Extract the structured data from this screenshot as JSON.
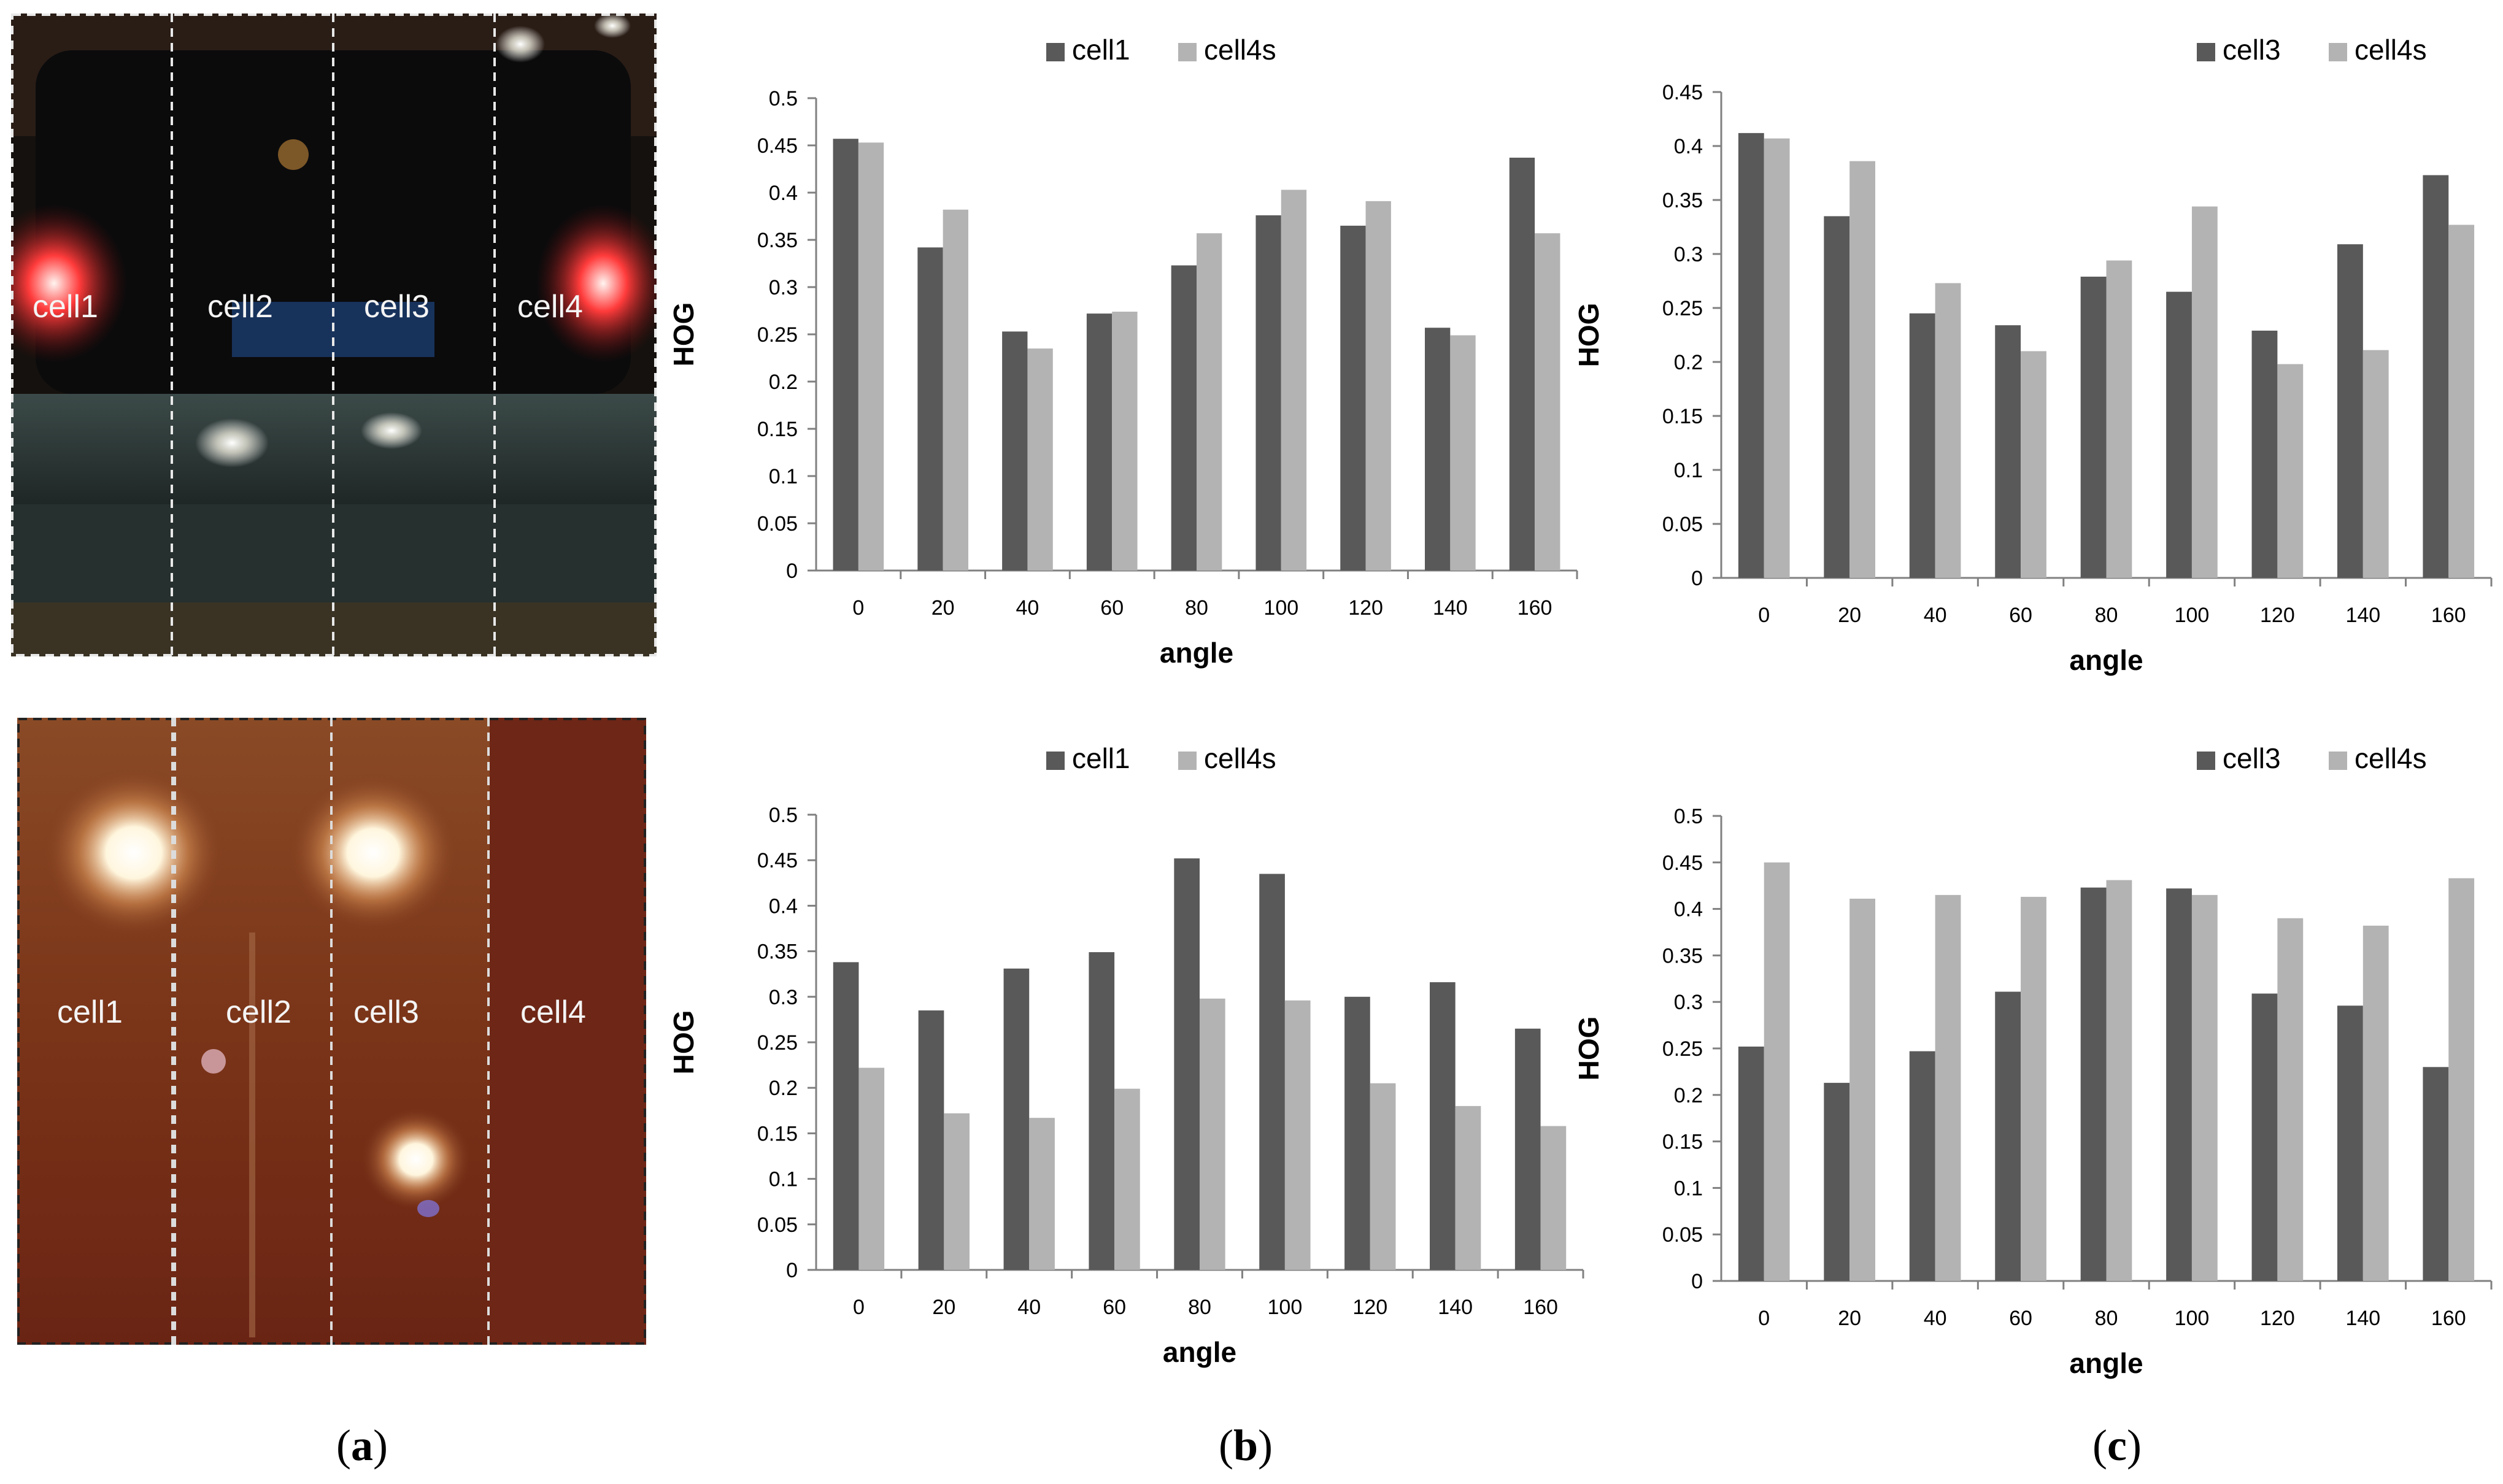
{
  "photos": [
    {
      "name": "car-rear-photo",
      "cell_labels": [
        "cell1",
        "cell2",
        "cell3",
        "cell4"
      ],
      "colors": {
        "background": "#1a1410",
        "divider": "#e8e8e8"
      }
    },
    {
      "name": "reflection-photo",
      "cell_labels": [
        "cell1",
        "cell2",
        "cell3",
        "cell4"
      ],
      "colors": {
        "background": "#7a3418",
        "divider": "#dcdcdc"
      }
    }
  ],
  "panel_labels": {
    "a": {
      "open": "(",
      "letter": "a",
      "close": ")"
    },
    "b": {
      "open": "(",
      "letter": "b",
      "close": ")"
    },
    "c": {
      "open": "(",
      "letter": "c",
      "close": ")"
    }
  },
  "colors": {
    "dark_series": "#595959",
    "light_series": "#b3b3b3",
    "axis": "#808080",
    "text": "#000000"
  },
  "chart_data": [
    {
      "id": "b-top",
      "type": "bar",
      "categories": [
        "0",
        "20",
        "40",
        "60",
        "80",
        "100",
        "120",
        "140",
        "160"
      ],
      "series": [
        {
          "name": "cell1",
          "values": [
            0.457,
            0.342,
            0.253,
            0.272,
            0.323,
            0.376,
            0.365,
            0.257,
            0.437
          ]
        },
        {
          "name": "cell4s",
          "values": [
            0.453,
            0.382,
            0.235,
            0.274,
            0.357,
            0.403,
            0.391,
            0.249,
            0.357
          ]
        }
      ],
      "xlabel": "angle",
      "ylabel": "HOG",
      "ylim": [
        0,
        0.5
      ],
      "yticks": [
        "0",
        "0.05",
        "0.1",
        "0.15",
        "0.2",
        "0.25",
        "0.3",
        "0.35",
        "0.4",
        "0.45",
        "0.5"
      ],
      "legend_position": "top-center",
      "grid": false
    },
    {
      "id": "c-top",
      "type": "bar",
      "categories": [
        "0",
        "20",
        "40",
        "60",
        "80",
        "100",
        "120",
        "140",
        "160"
      ],
      "series": [
        {
          "name": "cell3",
          "values": [
            0.412,
            0.335,
            0.245,
            0.234,
            0.279,
            0.265,
            0.229,
            0.309,
            0.373
          ]
        },
        {
          "name": "cell4s",
          "values": [
            0.407,
            0.386,
            0.273,
            0.21,
            0.294,
            0.344,
            0.198,
            0.211,
            0.327
          ]
        }
      ],
      "xlabel": "angle",
      "ylabel": "HOG",
      "ylim": [
        0,
        0.45
      ],
      "yticks": [
        "0",
        "0.05",
        "0.1",
        "0.15",
        "0.2",
        "0.25",
        "0.3",
        "0.35",
        "0.4",
        "0.45"
      ],
      "legend_position": "top-center",
      "grid": false
    },
    {
      "id": "b-bottom",
      "type": "bar",
      "categories": [
        "0",
        "20",
        "40",
        "60",
        "80",
        "100",
        "120",
        "140",
        "160"
      ],
      "series": [
        {
          "name": "cell1",
          "values": [
            0.338,
            0.285,
            0.331,
            0.349,
            0.452,
            0.435,
            0.3,
            0.316,
            0.265
          ]
        },
        {
          "name": "cell4s",
          "values": [
            0.222,
            0.172,
            0.167,
            0.199,
            0.298,
            0.296,
            0.205,
            0.18,
            0.158
          ]
        }
      ],
      "xlabel": "angle",
      "ylabel": "HOG",
      "ylim": [
        0,
        0.5
      ],
      "yticks": [
        "0",
        "0.05",
        "0.1",
        "0.15",
        "0.2",
        "0.25",
        "0.3",
        "0.35",
        "0.4",
        "0.45",
        "0.5"
      ],
      "legend_position": "top-center",
      "grid": false
    },
    {
      "id": "c-bottom",
      "type": "bar",
      "categories": [
        "0",
        "20",
        "40",
        "60",
        "80",
        "100",
        "120",
        "140",
        "160"
      ],
      "series": [
        {
          "name": "cell3",
          "values": [
            0.252,
            0.213,
            0.247,
            0.311,
            0.423,
            0.422,
            0.309,
            0.296,
            0.23
          ]
        },
        {
          "name": "cell4s",
          "values": [
            0.45,
            0.411,
            0.415,
            0.413,
            0.431,
            0.415,
            0.39,
            0.382,
            0.433
          ]
        }
      ],
      "xlabel": "angle",
      "ylabel": "HOG",
      "ylim": [
        0,
        0.5
      ],
      "yticks": [
        "0",
        "0.05",
        "0.1",
        "0.15",
        "0.2",
        "0.25",
        "0.3",
        "0.35",
        "0.4",
        "0.45",
        "0.5"
      ],
      "legend_position": "top-center",
      "grid": false
    }
  ]
}
